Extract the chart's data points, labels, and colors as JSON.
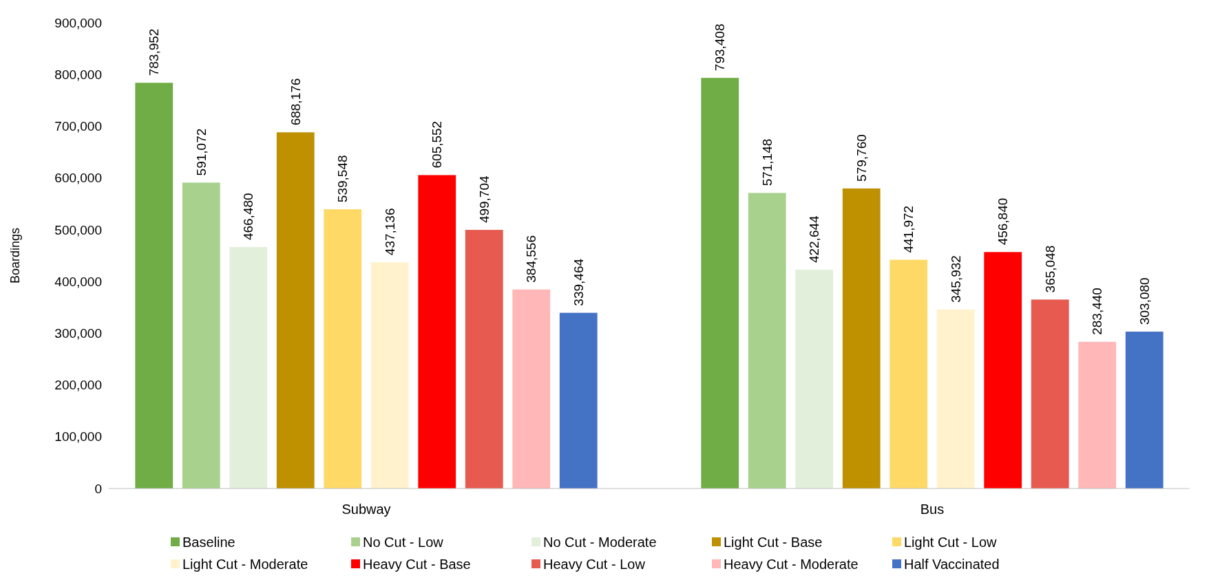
{
  "chart_data": {
    "type": "bar",
    "ylabel": "Boardings",
    "categories": [
      "Subway",
      "Bus"
    ],
    "series": [
      {
        "name": "Baseline",
        "color": "#70ad47",
        "values": [
          783952,
          793408
        ],
        "value_labels": [
          "783,952",
          "793,408"
        ]
      },
      {
        "name": "No Cut - Low",
        "color": "#a9d18e",
        "values": [
          591072,
          571148
        ],
        "value_labels": [
          "591,072",
          "571,148"
        ]
      },
      {
        "name": "No Cut - Moderate",
        "color": "#e2efda",
        "values": [
          466480,
          422644
        ],
        "value_labels": [
          "466,480",
          "422,644"
        ]
      },
      {
        "name": "Light Cut - Base",
        "color": "#bf9000",
        "values": [
          688176,
          579760
        ],
        "value_labels": [
          "688,176",
          "579,760"
        ]
      },
      {
        "name": "Light Cut - Low",
        "color": "#ffd966",
        "values": [
          539548,
          441972
        ],
        "value_labels": [
          "539,548",
          "441,972"
        ]
      },
      {
        "name": "Light Cut - Moderate",
        "color": "#fff2cc",
        "values": [
          437136,
          345932
        ],
        "value_labels": [
          "437,136",
          "345,932"
        ]
      },
      {
        "name": "Heavy Cut - Base",
        "color": "#ff0000",
        "values": [
          605552,
          456840
        ],
        "value_labels": [
          "605,552",
          "456,840"
        ]
      },
      {
        "name": "Heavy Cut - Low",
        "color": "#e65a50",
        "values": [
          499704,
          365048
        ],
        "value_labels": [
          "499,704",
          "365,048"
        ]
      },
      {
        "name": "Heavy Cut - Moderate",
        "color": "#ffb7b7",
        "values": [
          384556,
          283440
        ],
        "value_labels": [
          "384,556",
          "283,440"
        ]
      },
      {
        "name": "Half Vaccinated",
        "color": "#4472c4",
        "values": [
          339464,
          303080
        ],
        "value_labels": [
          "339,464",
          "303,080"
        ]
      }
    ],
    "ylim": [
      0,
      900000
    ],
    "yticks": [
      {
        "value": 0,
        "label": "0"
      },
      {
        "value": 100000,
        "label": "100,000"
      },
      {
        "value": 200000,
        "label": "200,000"
      },
      {
        "value": 300000,
        "label": "300,000"
      },
      {
        "value": 400000,
        "label": "400,000"
      },
      {
        "value": 500000,
        "label": "500,000"
      },
      {
        "value": 600000,
        "label": "600,000"
      },
      {
        "value": 700000,
        "label": "700,000"
      },
      {
        "value": 800000,
        "label": "800,000"
      },
      {
        "value": 900000,
        "label": "900,000"
      }
    ],
    "legend": "bottom",
    "grid": false
  }
}
